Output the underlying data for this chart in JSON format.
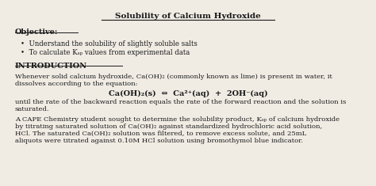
{
  "title": "Solubility of Calcium Hydroxide",
  "bg_color": "#f0ece4",
  "text_color": "#1a1a1a",
  "objective_label": "Objective:",
  "bullet1": "Understand the solubility of slightly soluble salts",
  "bullet2": "To calculate Kₛₚ values from experimental data",
  "intro_label": "INTRODUCTION",
  "para1_line1": "Whenever solid calcium hydroxide, Ca(OH)₂ (commonly known as lime) is present in water, it",
  "para1_line2": "dissolves according to the equation:",
  "equation": "Ca(OH)₂(s)  ⇔  Ca²⁺(aq)  +  2OH⁻(aq)",
  "para2_line1": "until the rate of the backward reaction equals the rate of the forward reaction and the solution is",
  "para2_line2": "saturated.",
  "para3_line1": "A CAPE Chemistry student sought to determine the solubility product, Kₛₚ of calcium hydroxide",
  "para3_line2": "by titrating saturated solution of Ca(OH)₂ against standardized hydrochloric acid solution,",
  "para3_line3": "HCl. The saturated Ca(OH)₂ solution was filtered, to remove excess solute, and 25mL",
  "para3_line4": "aliquots were titrated against 0.10M HCl solution using bromothymol blue indicator."
}
